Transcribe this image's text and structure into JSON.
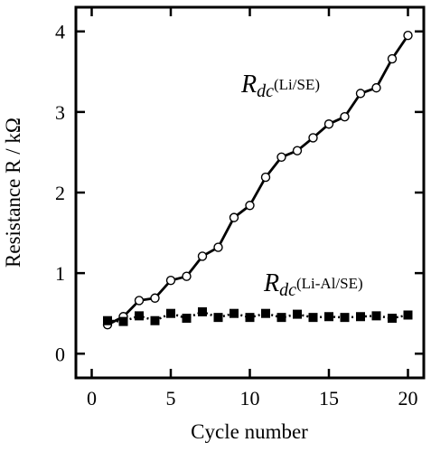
{
  "chart_data": {
    "type": "line",
    "xlabel": "Cycle number",
    "ylabel": "Resistance R / kΩ",
    "xlim": [
      -1,
      21
    ],
    "ylim": [
      -0.3,
      4.3
    ],
    "xticks": [
      0,
      5,
      10,
      15,
      20
    ],
    "yticks": [
      0,
      1,
      2,
      3,
      4
    ],
    "grid": false,
    "series": [
      {
        "name": "Rdc(Li/SE)",
        "label_symbol": "R",
        "label_subscript": "dc",
        "label_paren": "(Li/SE)",
        "marker": "open-circle",
        "line": "solid",
        "x": [
          1,
          2,
          3,
          4,
          5,
          6,
          7,
          8,
          9,
          10,
          11,
          12,
          13,
          14,
          15,
          16,
          17,
          18,
          19,
          20
        ],
        "y": [
          0.36,
          0.46,
          0.66,
          0.69,
          0.91,
          0.96,
          1.21,
          1.32,
          1.69,
          1.84,
          2.19,
          2.44,
          2.52,
          2.68,
          2.85,
          2.94,
          3.23,
          3.3,
          3.66,
          3.95
        ]
      },
      {
        "name": "Rdc(Li-Al/SE)",
        "label_symbol": "R",
        "label_subscript": "dc",
        "label_paren": "(Li-Al/SE)",
        "marker": "filled-square",
        "line": "dotted",
        "x": [
          1,
          2,
          3,
          4,
          5,
          6,
          7,
          8,
          9,
          10,
          11,
          12,
          13,
          14,
          15,
          16,
          17,
          18,
          19,
          20
        ],
        "y": [
          0.41,
          0.4,
          0.47,
          0.41,
          0.5,
          0.44,
          0.52,
          0.45,
          0.5,
          0.45,
          0.5,
          0.45,
          0.49,
          0.45,
          0.46,
          0.45,
          0.46,
          0.47,
          0.44,
          0.48
        ]
      }
    ]
  }
}
